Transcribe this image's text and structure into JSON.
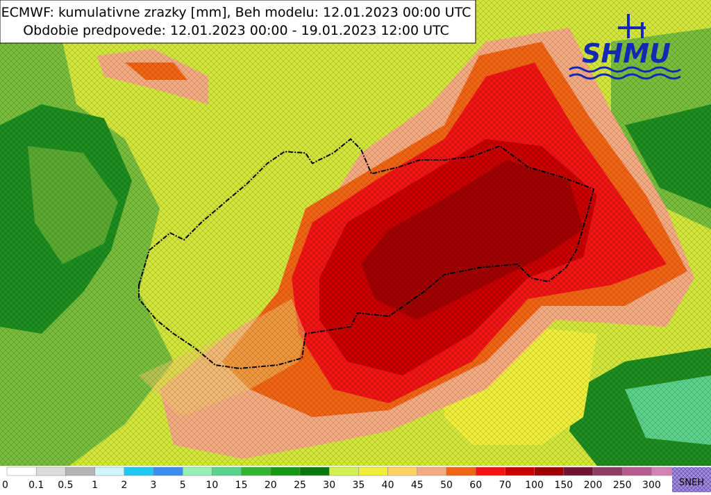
{
  "header": {
    "title": "ECMWF: kumulativne zrazky [mm], Beh modelu: 12.01.2023 00:00 UTC",
    "subtitle": "Obdobie predpovede: 12.01.2023 00:00 - 19.01.2023 12:00 UTC"
  },
  "logo": {
    "text": "SHMU"
  },
  "legend": {
    "labels": [
      "0",
      "0.1",
      "0.5",
      "1",
      "2",
      "3",
      "5",
      "10",
      "15",
      "20",
      "25",
      "30",
      "35",
      "40",
      "45",
      "50",
      "60",
      "70",
      "100",
      "150",
      "200",
      "250",
      "300"
    ],
    "colors": [
      "#ffffff",
      "#dcdcdc",
      "#b4b4b4",
      "#d2f5fa",
      "#1ec8f0",
      "#3c8cf0",
      "#96f0b4",
      "#5ad28c",
      "#32b432",
      "#149614",
      "#0a780a",
      "#d2f050",
      "#f0f03c",
      "#ffd264",
      "#f5aa82",
      "#f06414",
      "#f01414",
      "#c80000",
      "#a00000",
      "#6e1432",
      "#8c3c64",
      "#b45a8c",
      "#d282b4",
      "#ff96dc"
    ],
    "snow": "SNEH"
  }
}
